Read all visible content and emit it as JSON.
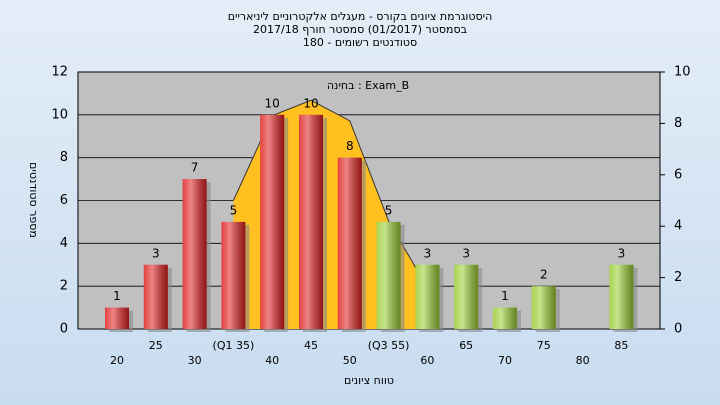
{
  "chart_data": {
    "type": "bar",
    "title_lines": [
      "היסטוגרמת ציונים בקורס - מעגלים אלקטרוניים ליניאריים",
      "בסמסטר  (01/2017)  סמסטר חורף  2017/18",
      "סטודנטים רשומים - 180"
    ],
    "annotation": "בחינה : Exam_B",
    "x_label": "טווח ציונים",
    "y_label": "מספר סטודנטים",
    "categories": [
      "20",
      "25",
      "30",
      "(Q1 35)",
      "40",
      "45",
      "50",
      "(Q3 55)",
      "60",
      "65",
      "70",
      "75",
      "80",
      "85"
    ],
    "values": [
      1,
      3,
      7,
      5,
      10,
      10,
      8,
      5,
      3,
      3,
      1,
      2,
      null,
      3
    ],
    "colors": [
      "#e02020",
      "#e02020",
      "#e02020",
      "#e02020",
      "#e02020",
      "#e02020",
      "#e02020",
      "#9acd32",
      "#9acd32",
      "#9acd32",
      "#9acd32",
      "#9acd32",
      "#9acd32",
      "#9acd32"
    ],
    "curve": {
      "color": "#ffc020",
      "axis": "y2",
      "values": [
        null,
        null,
        null,
        5,
        8.3,
        8.9,
        8.1,
        4.2,
        1.6,
        null,
        null,
        null,
        null,
        null
      ]
    },
    "ylim": [
      0,
      12
    ],
    "yticks": [
      0,
      2,
      4,
      6,
      8,
      10,
      12
    ],
    "y2lim": [
      0,
      10
    ],
    "y2ticks": [
      0,
      2,
      4,
      6,
      8,
      10
    ],
    "grid": true
  }
}
